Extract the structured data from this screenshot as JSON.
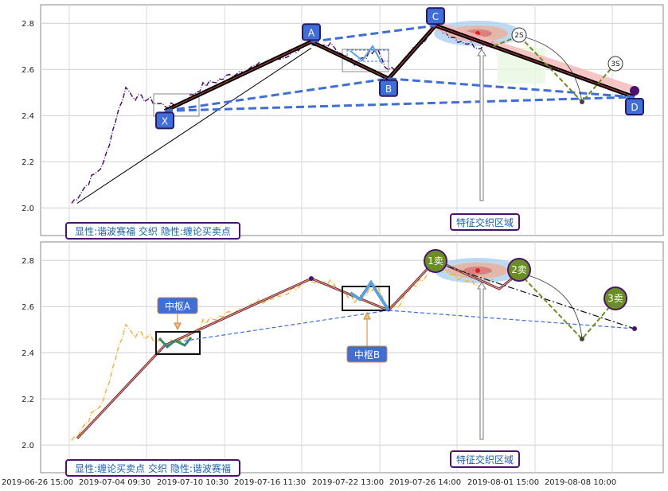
{
  "chart_data": [
    {
      "type": "line",
      "title": "",
      "x_ticks": [
        "2019-06-26 15:00",
        "2019-07-04 09:30",
        "2019-07-10 10:30",
        "2019-07-16 11:30",
        "2019-07-22 13:00",
        "2019-07-26 14:00",
        "2019-08-01 15:00",
        "2019-08-08 10:00"
      ],
      "y_ticks": [
        "2.0",
        "2.2",
        "2.4",
        "2.6",
        "2.8"
      ],
      "ylim": [
        1.88,
        2.88
      ],
      "xlim": [
        0,
        100
      ],
      "grid": true,
      "pattern_points": [
        {
          "name": "X",
          "x": 12,
          "y": 2.42
        },
        {
          "name": "A",
          "x": 31,
          "y": 2.72
        },
        {
          "name": "B",
          "x": 41,
          "y": 2.56
        },
        {
          "name": "C",
          "x": 47,
          "y": 2.79
        },
        {
          "name": "D",
          "x": 73,
          "y": 2.48
        }
      ],
      "projection_labels": [
        "2S",
        "3S"
      ],
      "label_top": "显性:谐波赛福 交织 隐性:缠论买卖点",
      "label_zone": "特征交织区域"
    },
    {
      "type": "line",
      "x_ticks": [
        "2019-06-26 15:00",
        "2019-07-04 09:30",
        "2019-07-10 10:30",
        "2019-07-16 11:30",
        "2019-07-22 13:00",
        "2019-07-26 14:00",
        "2019-08-01 15:00",
        "2019-08-08 10:00"
      ],
      "y_ticks": [
        "2.0",
        "2.2",
        "2.4",
        "2.6",
        "2.8"
      ],
      "ylim": [
        1.88,
        2.88
      ],
      "grid": true,
      "signals": [
        {
          "name": "1卖",
          "x": 47,
          "y": 2.79
        },
        {
          "name": "2卖",
          "x": 57,
          "y": 2.75
        },
        {
          "name": "3卖",
          "x": 70,
          "y": 2.62
        }
      ],
      "pivots": [
        {
          "name": "中枢A",
          "x": 12,
          "y": 2.43
        },
        {
          "name": "中枢B",
          "x": 38,
          "y": 2.64
        }
      ],
      "label_bottom": "显性:缠论买卖点 交织 隐性:谐波赛福",
      "label_zone": "特征交织区域"
    }
  ],
  "colors": {
    "primary_blue": "#3f6fd6",
    "purple": "#4b136e",
    "orange": "#f0b440",
    "olive": "#6b8e23",
    "brown": "#7a2a2a"
  }
}
